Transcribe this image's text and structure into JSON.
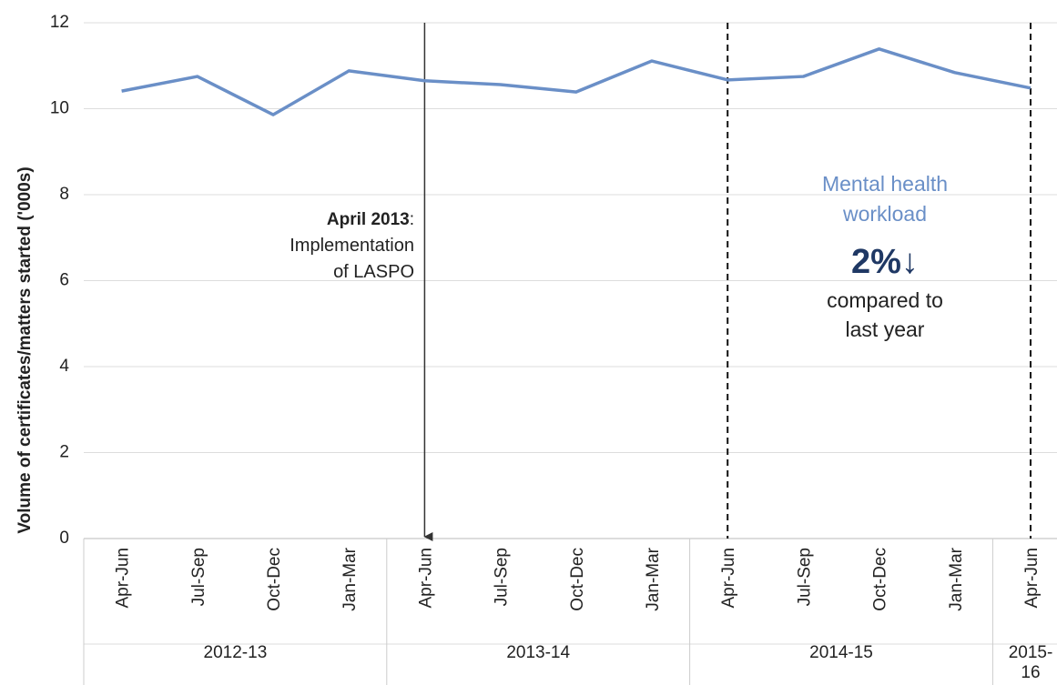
{
  "chart_data": {
    "type": "line",
    "y_label": "Volume of certificates/matters started ('000s)",
    "categories": [
      "Apr-Jun",
      "Jul-Sep",
      "Oct-Dec",
      "Jan-Mar",
      "Apr-Jun",
      "Jul-Sep",
      "Oct-Dec",
      "Jan-Mar",
      "Apr-Jun",
      "Jul-Sep",
      "Oct-Dec",
      "Jan-Mar",
      "Apr-Jun"
    ],
    "groups": [
      {
        "label": "2012-13",
        "start": 0,
        "end": 3
      },
      {
        "label": "2013-14",
        "start": 4,
        "end": 7
      },
      {
        "label": "2014-15",
        "start": 8,
        "end": 11
      },
      {
        "label": "2015-16",
        "start": 12,
        "end": 12
      }
    ],
    "series": [
      {
        "name": "Mental health",
        "color": "#6a8fc7",
        "values": [
          10.41,
          10.75,
          9.86,
          10.88,
          10.65,
          10.56,
          10.39,
          11.11,
          10.67,
          10.75,
          11.39,
          10.84,
          10.48
        ]
      }
    ],
    "ylim": [
      0,
      12
    ],
    "yticks": [
      0,
      2,
      4,
      6,
      8,
      10,
      12
    ],
    "grid": true,
    "vlines": [
      {
        "category": 4,
        "style": "arrow"
      },
      {
        "category": 8,
        "style": "dashed"
      },
      {
        "category": 12,
        "style": "dashed"
      }
    ],
    "annotation_left": {
      "bold": "April  2013",
      "after": ":",
      "lines": [
        "Implementation",
        "of LASPO"
      ]
    },
    "annotation_right": {
      "lines": [
        "Mental health",
        "workload"
      ],
      "big": "2%↓",
      "after": [
        "compared to",
        "last year"
      ]
    }
  }
}
